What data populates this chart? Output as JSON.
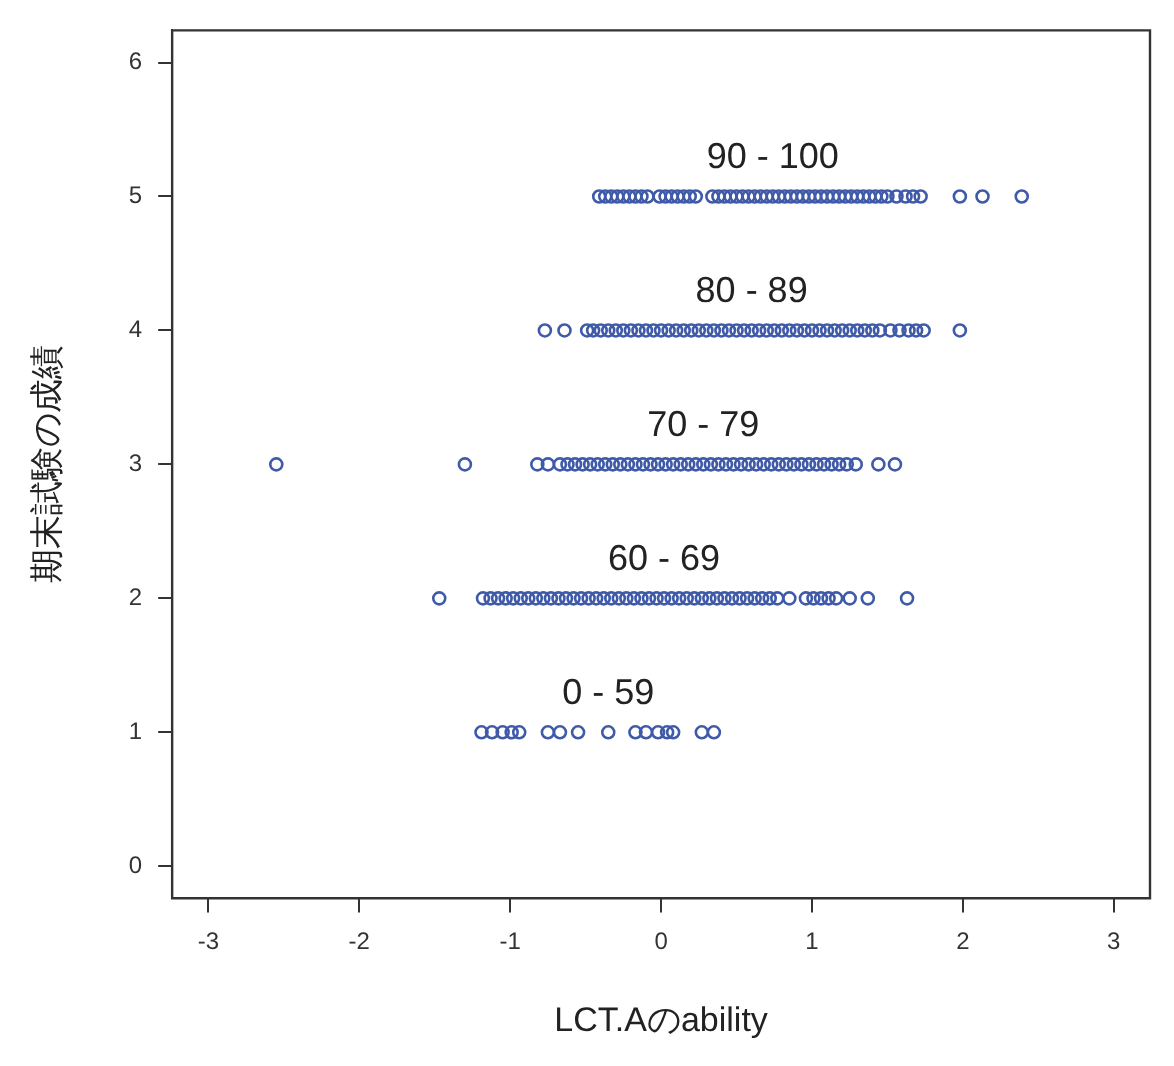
{
  "chart_data": {
    "type": "scatter",
    "xlabel": "LCT.Aのability",
    "ylabel": "期末試験の成績",
    "xlim": [
      -3.24,
      3.24
    ],
    "xticks": [
      -3,
      -2,
      -1,
      0,
      1,
      2,
      3
    ],
    "ylim": [
      -0.24,
      6.24
    ],
    "yticks": [
      0,
      1,
      2,
      3,
      4,
      5,
      6
    ],
    "grid": false,
    "legend": false,
    "marker": "circle",
    "series": [
      {
        "color": "#3f5aa8",
        "x": [
          -0.41,
          -0.37,
          -0.33,
          -0.29,
          -0.25,
          -0.21,
          -0.17,
          -0.13,
          -0.09,
          -0.01,
          0.03,
          0.07,
          0.11,
          0.15,
          0.19,
          0.23,
          0.34,
          0.38,
          0.42,
          0.46,
          0.5,
          0.54,
          0.58,
          0.62,
          0.66,
          0.7,
          0.74,
          0.78,
          0.82,
          0.86,
          0.9,
          0.94,
          0.98,
          1.02,
          1.06,
          1.1,
          1.14,
          1.18,
          1.22,
          1.26,
          1.3,
          1.34,
          1.38,
          1.42,
          1.46,
          1.5,
          1.56,
          1.62,
          1.67,
          1.72,
          1.98,
          2.13,
          2.39
        ],
        "values": [
          5,
          5,
          5,
          5,
          5,
          5,
          5,
          5,
          5,
          5,
          5,
          5,
          5,
          5,
          5,
          5,
          5,
          5,
          5,
          5,
          5,
          5,
          5,
          5,
          5,
          5,
          5,
          5,
          5,
          5,
          5,
          5,
          5,
          5,
          5,
          5,
          5,
          5,
          5,
          5,
          5,
          5,
          5,
          5,
          5,
          5,
          5,
          5,
          5,
          5,
          5,
          5,
          5
        ]
      },
      {
        "color": "#3f5aa8",
        "x": [
          -0.77,
          -0.64,
          -0.49,
          -0.45,
          -0.4,
          -0.35,
          -0.3,
          -0.25,
          -0.2,
          -0.15,
          -0.1,
          -0.05,
          0,
          0.05,
          0.1,
          0.15,
          0.2,
          0.25,
          0.3,
          0.35,
          0.4,
          0.45,
          0.5,
          0.55,
          0.6,
          0.65,
          0.7,
          0.75,
          0.8,
          0.85,
          0.9,
          0.95,
          1,
          1.05,
          1.1,
          1.15,
          1.2,
          1.25,
          1.3,
          1.35,
          1.4,
          1.45,
          1.52,
          1.58,
          1.64,
          1.69,
          1.74,
          1.98
        ],
        "values": [
          4,
          4,
          4,
          4,
          4,
          4,
          4,
          4,
          4,
          4,
          4,
          4,
          4,
          4,
          4,
          4,
          4,
          4,
          4,
          4,
          4,
          4,
          4,
          4,
          4,
          4,
          4,
          4,
          4,
          4,
          4,
          4,
          4,
          4,
          4,
          4,
          4,
          4,
          4,
          4,
          4,
          4,
          4,
          4,
          4,
          4,
          4,
          4
        ]
      },
      {
        "color": "#3f5aa8",
        "x": [
          -2.55,
          -1.3,
          -0.82,
          -0.75,
          -0.67,
          -0.62,
          -0.57,
          -0.52,
          -0.47,
          -0.42,
          -0.37,
          -0.32,
          -0.27,
          -0.22,
          -0.17,
          -0.12,
          -0.07,
          -0.02,
          0.03,
          0.08,
          0.13,
          0.18,
          0.23,
          0.28,
          0.33,
          0.38,
          0.43,
          0.48,
          0.53,
          0.58,
          0.63,
          0.68,
          0.73,
          0.78,
          0.83,
          0.88,
          0.93,
          0.98,
          1.03,
          1.08,
          1.13,
          1.18,
          1.23,
          1.29,
          1.44,
          1.55
        ],
        "values": [
          3,
          3,
          3,
          3,
          3,
          3,
          3,
          3,
          3,
          3,
          3,
          3,
          3,
          3,
          3,
          3,
          3,
          3,
          3,
          3,
          3,
          3,
          3,
          3,
          3,
          3,
          3,
          3,
          3,
          3,
          3,
          3,
          3,
          3,
          3,
          3,
          3,
          3,
          3,
          3,
          3,
          3,
          3,
          3,
          3,
          3
        ]
      },
      {
        "color": "#3f5aa8",
        "x": [
          -1.47,
          -1.18,
          -1.13,
          -1.08,
          -1.03,
          -0.98,
          -0.93,
          -0.88,
          -0.83,
          -0.78,
          -0.73,
          -0.68,
          -0.63,
          -0.58,
          -0.53,
          -0.48,
          -0.43,
          -0.38,
          -0.33,
          -0.28,
          -0.23,
          -0.18,
          -0.13,
          -0.08,
          -0.03,
          0.02,
          0.07,
          0.12,
          0.17,
          0.22,
          0.27,
          0.32,
          0.37,
          0.42,
          0.47,
          0.52,
          0.57,
          0.62,
          0.67,
          0.72,
          0.77,
          0.85,
          0.96,
          1.01,
          1.06,
          1.11,
          1.16,
          1.25,
          1.37,
          1.63
        ],
        "values": [
          2,
          2,
          2,
          2,
          2,
          2,
          2,
          2,
          2,
          2,
          2,
          2,
          2,
          2,
          2,
          2,
          2,
          2,
          2,
          2,
          2,
          2,
          2,
          2,
          2,
          2,
          2,
          2,
          2,
          2,
          2,
          2,
          2,
          2,
          2,
          2,
          2,
          2,
          2,
          2,
          2,
          2,
          2,
          2,
          2,
          2,
          2,
          2,
          2,
          2
        ]
      },
      {
        "color": "#3f5aa8",
        "x": [
          -1.19,
          -1.12,
          -1.05,
          -0.99,
          -0.94,
          -0.75,
          -0.67,
          -0.55,
          -0.35,
          -0.17,
          -0.1,
          -0.02,
          0.04,
          0.08,
          0.27,
          0.35
        ],
        "values": [
          1,
          1,
          1,
          1,
          1,
          1,
          1,
          1,
          1,
          1,
          1,
          1,
          1,
          1,
          1,
          1
        ]
      }
    ],
    "annotations": [
      "90 - 100",
      "80 - 89",
      "70 - 79",
      "60 - 69",
      "0 - 59"
    ]
  }
}
